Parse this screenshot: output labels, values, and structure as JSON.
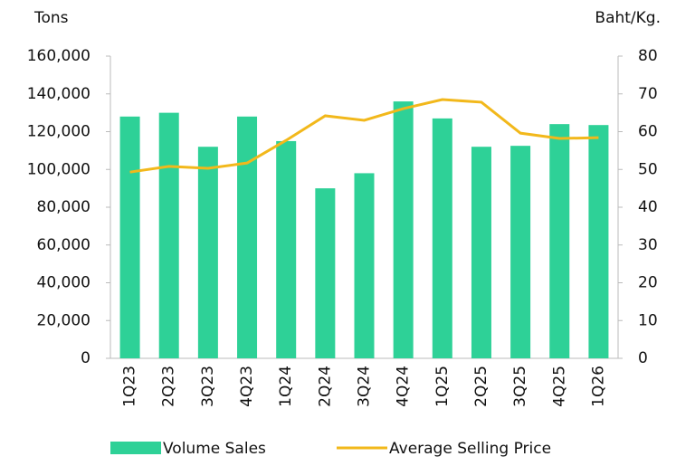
{
  "chart_data": {
    "type": "bar_line",
    "y_axis_label": "Tons",
    "y2_axis_label": "Baht/Kg.",
    "categories": [
      "1Q23",
      "2Q23",
      "3Q23",
      "4Q23",
      "1Q24",
      "2Q24",
      "3Q24",
      "4Q24",
      "1Q25",
      "2Q25",
      "3Q25",
      "4Q25",
      "1Q26"
    ],
    "series": [
      {
        "name": "Volume Sales",
        "type": "bar",
        "color": "#2ed197",
        "axis": "y",
        "values": [
          128000,
          130000,
          112000,
          128000,
          115000,
          90000,
          98000,
          136000,
          127000,
          112000,
          112500,
          124000,
          123500
        ]
      },
      {
        "name": "Average Selling Price",
        "type": "line",
        "color": "#f2b81b",
        "axis": "y2",
        "values": [
          49.3,
          50.8,
          50.3,
          51.7,
          57.7,
          64.2,
          63.0,
          66.1,
          68.5,
          67.8,
          59.6,
          58.2,
          58.4
        ]
      }
    ],
    "ylim": [
      0,
      160000
    ],
    "yticks": [
      0,
      {
        "value": 20000,
        "label": "20,000"
      },
      {
        "value": 40000,
        "label": "40,000"
      },
      {
        "value": 60000,
        "label": "60,000"
      },
      {
        "value": 80000,
        "label": "80,000"
      },
      {
        "value": 100000,
        "label": "100,000"
      },
      {
        "value": 120000,
        "label": "120,000"
      },
      {
        "value": 140000,
        "label": "140,000"
      },
      {
        "value": 160000,
        "label": "160,000"
      }
    ],
    "y2lim": [
      0,
      80
    ],
    "y2ticks": [
      0,
      10,
      20,
      30,
      40,
      50,
      60,
      70,
      80
    ],
    "legend": "bottom"
  }
}
